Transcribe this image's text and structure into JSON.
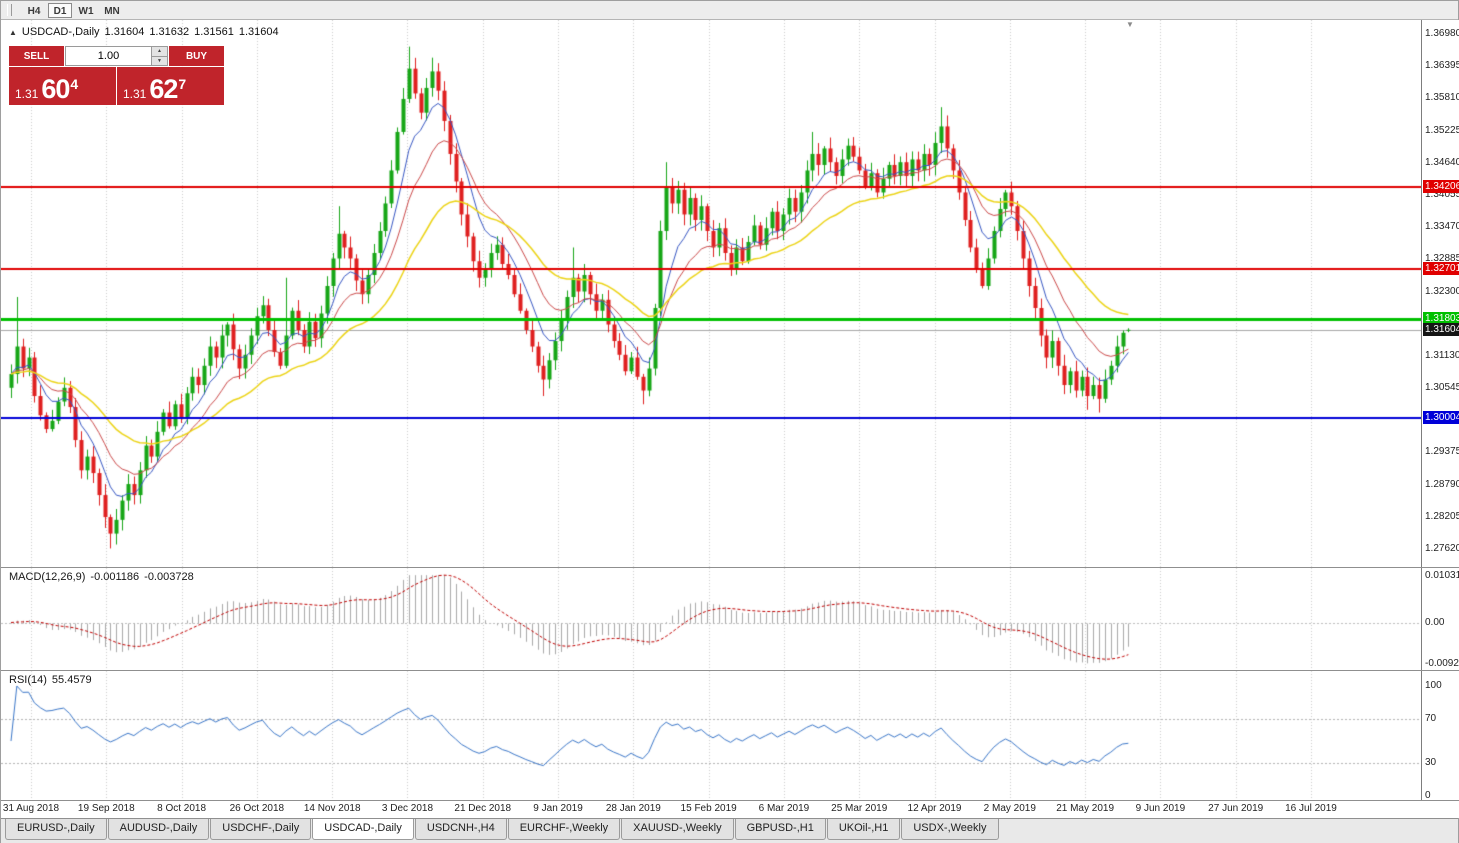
{
  "icons": {
    "collapse": "▲",
    "shift_marker": "▼",
    "spinner_up": "▲",
    "spinner_down": "▼"
  },
  "toolbar": {
    "buttons": [
      {
        "label": "H4",
        "active": false
      },
      {
        "label": "D1",
        "active": true
      },
      {
        "label": "W1",
        "active": false
      },
      {
        "label": "MN",
        "active": false
      }
    ]
  },
  "chart": {
    "title": {
      "symbol": "USDCAD-,Daily",
      "open": "1.31604",
      "high": "1.31632",
      "low": "1.31561",
      "close": "1.31604"
    },
    "one_click": {
      "sell_label": "SELL",
      "buy_label": "BUY",
      "volume": "1.00",
      "sell_price_base": "1.31",
      "sell_price_big": "60",
      "sell_price_pip": "4",
      "buy_price_base": "1.31",
      "buy_price_big": "62",
      "buy_price_pip": "7"
    }
  },
  "chart_data": {
    "type": "candlestick",
    "symbol": "USDCAD-",
    "timeframe": "Daily",
    "y_range": {
      "max": 1.3698,
      "min": 1.2762
    },
    "y_ticks": [
      "1.36980",
      "1.36395",
      "1.35810",
      "1.35225",
      "1.34640",
      "1.34055",
      "1.33470",
      "1.32885",
      "1.32300",
      "1.31715",
      "1.31130",
      "1.30545",
      "1.29960",
      "1.29375",
      "1.28790",
      "1.28205",
      "1.27620"
    ],
    "x_labels": [
      "31 Aug 2018",
      "19 Sep 2018",
      "8 Oct 2018",
      "26 Oct 2018",
      "14 Nov 2018",
      "3 Dec 2018",
      "21 Dec 2018",
      "9 Jan 2019",
      "28 Jan 2019",
      "15 Feb 2019",
      "6 Mar 2019",
      "25 Mar 2019",
      "12 Apr 2019",
      "2 May 2019",
      "21 May 2019",
      "9 Jun 2019",
      "27 Jun 2019",
      "16 Jul 2019"
    ],
    "first_open": 1.3055,
    "closes": [
      1.308,
      1.313,
      1.309,
      1.311,
      1.304,
      1.3005,
      1.298,
      1.2995,
      1.303,
      1.3055,
      1.302,
      1.296,
      1.2905,
      1.293,
      1.29,
      1.286,
      1.282,
      1.279,
      1.2815,
      1.285,
      1.288,
      1.286,
      1.2905,
      1.295,
      1.293,
      1.2975,
      1.301,
      1.2985,
      1.3025,
      1.3,
      1.3045,
      1.3075,
      1.306,
      1.3095,
      1.313,
      1.311,
      1.315,
      1.317,
      1.3125,
      1.309,
      1.3115,
      1.315,
      1.3185,
      1.3205,
      1.316,
      1.312,
      1.3095,
      1.315,
      1.3195,
      1.316,
      1.313,
      1.3175,
      1.3145,
      1.319,
      1.324,
      1.329,
      1.3335,
      1.331,
      1.329,
      1.325,
      1.3225,
      1.326,
      1.33,
      1.334,
      1.339,
      1.345,
      1.352,
      1.358,
      1.3635,
      1.359,
      1.3555,
      1.36,
      1.363,
      1.3595,
      1.354,
      1.348,
      1.343,
      1.337,
      1.333,
      1.3285,
      1.3255,
      1.327,
      1.33,
      1.3315,
      1.328,
      1.326,
      1.3225,
      1.3195,
      1.316,
      1.313,
      1.3095,
      1.307,
      1.3105,
      1.314,
      1.318,
      1.322,
      1.3255,
      1.323,
      1.326,
      1.3225,
      1.3195,
      1.3215,
      1.317,
      1.314,
      1.3115,
      1.3085,
      1.311,
      1.3075,
      1.305,
      1.309,
      1.32,
      1.334,
      1.342,
      1.339,
      1.3415,
      1.337,
      1.34,
      1.336,
      1.3385,
      1.334,
      1.331,
      1.3345,
      1.33,
      1.327,
      1.331,
      1.3285,
      1.332,
      1.335,
      1.3315,
      1.3345,
      1.3375,
      1.334,
      1.337,
      1.34,
      1.3375,
      1.341,
      1.345,
      1.348,
      1.346,
      1.349,
      1.3465,
      1.344,
      1.347,
      1.3495,
      1.3475,
      1.345,
      1.342,
      1.3445,
      1.341,
      1.3435,
      1.346,
      1.344,
      1.3465,
      1.344,
      1.347,
      1.345,
      1.348,
      1.346,
      1.35,
      1.353,
      1.349,
      1.345,
      1.341,
      1.336,
      1.331,
      1.327,
      1.324,
      1.329,
      1.334,
      1.338,
      1.341,
      1.3385,
      1.334,
      1.329,
      1.324,
      1.32,
      1.315,
      1.311,
      1.314,
      1.3095,
      1.306,
      1.3085,
      1.305,
      1.3075,
      1.304,
      1.306,
      1.3035,
      1.307,
      1.3095,
      1.313,
      1.3155,
      1.31604
    ],
    "wick_overrides": {
      "1": {
        "h": 1.322
      },
      "17": {
        "l": 1.2763
      },
      "47": {
        "h": 1.3255
      },
      "56": {
        "h": 1.3385
      },
      "68": {
        "h": 1.3675
      },
      "72": {
        "h": 1.3655
      },
      "91": {
        "l": 1.304
      },
      "96": {
        "h": 1.331
      },
      "108": {
        "l": 1.3025
      },
      "112": {
        "h": 1.3465
      },
      "137": {
        "h": 1.352
      },
      "159": {
        "h": 1.3565
      },
      "184": {
        "l": 1.3015
      },
      "186": {
        "l": 1.301
      }
    },
    "last_bar": {
      "o": 1.31604,
      "h": 1.31632,
      "l": 1.31561,
      "c": 1.31604
    },
    "candle_colors": {
      "bull": "#17a617",
      "bear": "#df2020"
    },
    "moving_averages": [
      {
        "period": 7,
        "color": "#3757c4"
      },
      {
        "period": 14,
        "color": "#cc4a4a"
      },
      {
        "period": 30,
        "color": "#ecd417"
      }
    ],
    "h_lines": [
      {
        "price": 1.34206,
        "label": "1.34206",
        "color": "#e00000",
        "width": 2
      },
      {
        "price": 1.32701,
        "label": "1.32701",
        "color": "#e00000",
        "width": 2
      },
      {
        "price": 1.31803,
        "label": "1.31803",
        "color": "#00c000",
        "width": 3
      },
      {
        "price": 1.30004,
        "label": "1.30004",
        "color": "#0000d8",
        "width": 2
      }
    ],
    "bid": {
      "price": 1.31604,
      "label": "1.31604",
      "color": "#151515"
    },
    "macd": {
      "label": "MACD(12,26,9)",
      "value_main": "-0.001186",
      "value_signal": "-0.003728",
      "axis_labels": [
        "0.01031",
        "0.00",
        "-0.00920"
      ],
      "axis_values": [
        0.01031,
        0,
        -0.0092
      ],
      "hist_color": "#a9a9a9",
      "signal_color": "#c00000"
    },
    "rsi": {
      "label": "RSI(14)",
      "value": "55.4579",
      "axis_labels": [
        "100",
        "70",
        "30",
        "0"
      ],
      "axis_values": [
        100,
        70,
        30,
        0
      ],
      "levels": [
        70,
        30
      ],
      "color": "#3b77c9"
    }
  },
  "tabs": [
    {
      "label": "EURUSD-,Daily",
      "active": false
    },
    {
      "label": "AUDUSD-,Daily",
      "active": false
    },
    {
      "label": "USDCHF-,Daily",
      "active": false
    },
    {
      "label": "USDCAD-,Daily",
      "active": true
    },
    {
      "label": "USDCNH-,H4",
      "active": false
    },
    {
      "label": "EURCHF-,Weekly",
      "active": false
    },
    {
      "label": "XAUUSD-,Weekly",
      "active": false
    },
    {
      "label": "GBPUSD-,H1",
      "active": false
    },
    {
      "label": "UKOil-,H1",
      "active": false
    },
    {
      "label": "USDX-,Weekly",
      "active": false
    }
  ]
}
